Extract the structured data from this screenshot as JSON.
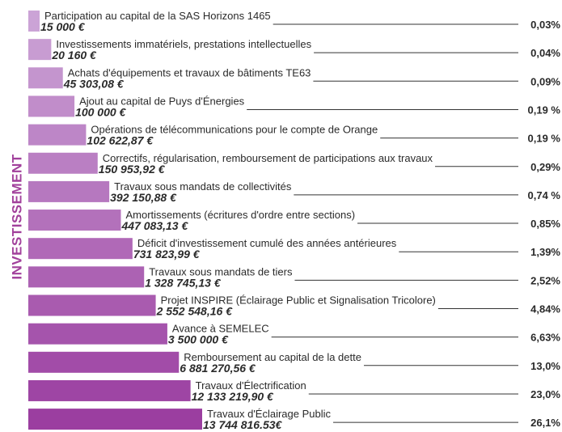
{
  "side_label": "INVESTISSEMENT",
  "items": [
    {
      "label": "Participation au capital de la SAS Horizons 1465",
      "amount": "15 000 €",
      "share": "0,03%"
    },
    {
      "label": "Investissements immatériels, prestations intellectuelles",
      "amount": "20 160 €",
      "share": "0,04%"
    },
    {
      "label": "Achats d'équipements et travaux de bâtiments TE63",
      "amount": "45 303,08 €",
      "share": "0,09%"
    },
    {
      "label": "Ajout au capital de Puys d'Énergies",
      "amount": "100 000 €",
      "share": "0,19 %"
    },
    {
      "label": "Opérations de télécommunications pour le compte de Orange",
      "amount": "102 622,87 €",
      "share": "0,19 %"
    },
    {
      "label": "Correctifs, régularisation, remboursement de participations aux travaux",
      "amount": "150 953,92 €",
      "share": "0,29%"
    },
    {
      "label": "Travaux sous mandats de collectivités",
      "amount": "392 150,88 €",
      "share": "0,74 %"
    },
    {
      "label": "Amortissements (écritures d'ordre entre sections)",
      "amount": "447 083,13 €",
      "share": "0,85%"
    },
    {
      "label": "Déficit d'investissement cumulé des années antérieures",
      "amount": "731 823,99 €",
      "share": "1,39%"
    },
    {
      "label": "Travaux sous mandats de tiers",
      "amount": "1 328 745,13 €",
      "share": "2,52%"
    },
    {
      "label": "Projet INSPIRE (Éclairage Public et Signalisation Tricolore)",
      "amount": "2 552 548,16 €",
      "share": "4,84%"
    },
    {
      "label": "Avance à SEMELEC",
      "amount": "3 500 000 €",
      "share": "6,63%"
    },
    {
      "label": "Remboursement au capital de la dette",
      "amount": "6 881 270,56 €",
      "share": "13,0%"
    },
    {
      "label": "Travaux d'Électrification",
      "amount": "12 133 219,90 €",
      "share": "23,0%"
    },
    {
      "label": "Travaux d'Éclairage Public",
      "amount": "13 744 816.53€",
      "share": "26,1%"
    }
  ]
}
